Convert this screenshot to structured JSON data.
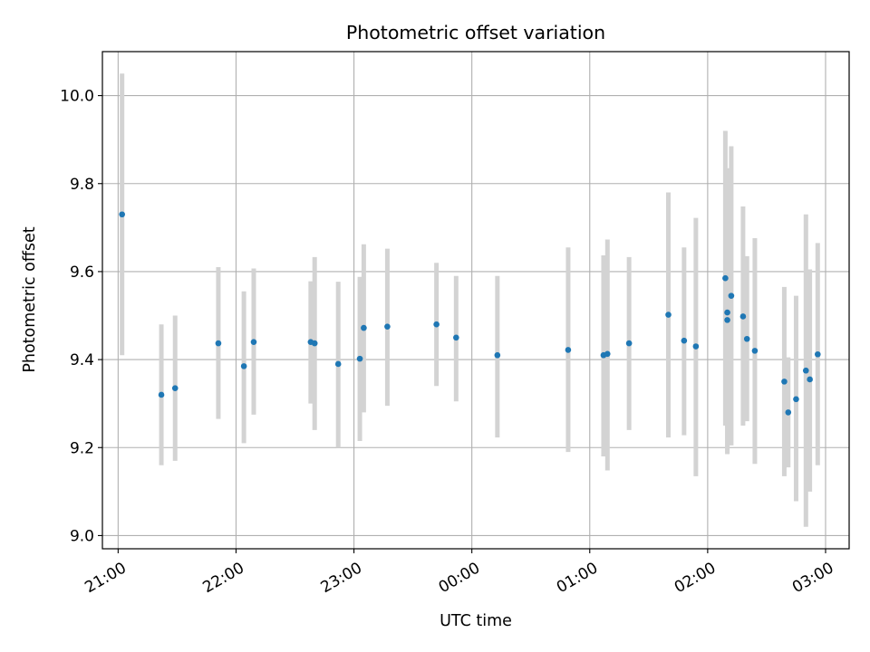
{
  "chart_data": {
    "type": "scatter",
    "title": "Photometric offset variation",
    "xlabel": "UTC time",
    "ylabel": "Photometric offset",
    "x_is_time": true,
    "xlim": [
      "20:52",
      "03:12"
    ],
    "ylim": [
      8.97,
      10.1
    ],
    "x_ticks": [
      "21:00",
      "22:00",
      "23:00",
      "00:00",
      "01:00",
      "02:00",
      "03:00"
    ],
    "y_ticks": [
      "9.0",
      "9.2",
      "9.4",
      "9.6",
      "9.8",
      "10.0"
    ],
    "grid": true,
    "marker_color": "#1f77b4",
    "errorbar_color": "#d3d3d3",
    "points": [
      {
        "time": "21:02",
        "y": 9.73,
        "ylow": 9.41,
        "yhigh": 10.05
      },
      {
        "time": "21:22",
        "y": 9.32,
        "ylow": 9.16,
        "yhigh": 9.48
      },
      {
        "time": "21:29",
        "y": 9.335,
        "ylow": 9.17,
        "yhigh": 9.5
      },
      {
        "time": "21:51",
        "y": 9.437,
        "ylow": 9.265,
        "yhigh": 9.61
      },
      {
        "time": "22:04",
        "y": 9.385,
        "ylow": 9.21,
        "yhigh": 9.555
      },
      {
        "time": "22:09",
        "y": 9.44,
        "ylow": 9.275,
        "yhigh": 9.607
      },
      {
        "time": "22:38",
        "y": 9.44,
        "ylow": 9.3,
        "yhigh": 9.578
      },
      {
        "time": "22:40",
        "y": 9.437,
        "ylow": 9.24,
        "yhigh": 9.633
      },
      {
        "time": "22:52",
        "y": 9.39,
        "ylow": 9.2,
        "yhigh": 9.577
      },
      {
        "time": "23:03",
        "y": 9.402,
        "ylow": 9.215,
        "yhigh": 9.588
      },
      {
        "time": "23:05",
        "y": 9.472,
        "ylow": 9.28,
        "yhigh": 9.662
      },
      {
        "time": "23:17",
        "y": 9.475,
        "ylow": 9.295,
        "yhigh": 9.652
      },
      {
        "time": "23:42",
        "y": 9.48,
        "ylow": 9.34,
        "yhigh": 9.62
      },
      {
        "time": "23:52",
        "y": 9.45,
        "ylow": 9.305,
        "yhigh": 9.59
      },
      {
        "time": "00:13",
        "y": 9.41,
        "ylow": 9.223,
        "yhigh": 9.59
      },
      {
        "time": "00:49",
        "y": 9.422,
        "ylow": 9.19,
        "yhigh": 9.655
      },
      {
        "time": "01:07",
        "y": 9.41,
        "ylow": 9.18,
        "yhigh": 9.637
      },
      {
        "time": "01:09",
        "y": 9.413,
        "ylow": 9.148,
        "yhigh": 9.673
      },
      {
        "time": "01:20",
        "y": 9.437,
        "ylow": 9.24,
        "yhigh": 9.633
      },
      {
        "time": "01:40",
        "y": 9.502,
        "ylow": 9.223,
        "yhigh": 9.78
      },
      {
        "time": "01:48",
        "y": 9.443,
        "ylow": 9.228,
        "yhigh": 9.655
      },
      {
        "time": "01:54",
        "y": 9.43,
        "ylow": 9.135,
        "yhigh": 9.722
      },
      {
        "time": "02:09",
        "y": 9.585,
        "ylow": 9.25,
        "yhigh": 9.92
      },
      {
        "time": "02:10",
        "y": 9.507,
        "ylow": 9.185,
        "yhigh": 9.835
      },
      {
        "time": "02:10",
        "y": 9.49,
        "ylow": 9.19,
        "yhigh": 9.8
      },
      {
        "time": "02:12",
        "y": 9.545,
        "ylow": 9.205,
        "yhigh": 9.885
      },
      {
        "time": "02:18",
        "y": 9.498,
        "ylow": 9.25,
        "yhigh": 9.748
      },
      {
        "time": "02:20",
        "y": 9.447,
        "ylow": 9.26,
        "yhigh": 9.635
      },
      {
        "time": "02:24",
        "y": 9.42,
        "ylow": 9.163,
        "yhigh": 9.676
      },
      {
        "time": "02:39",
        "y": 9.35,
        "ylow": 9.135,
        "yhigh": 9.565
      },
      {
        "time": "02:41",
        "y": 9.28,
        "ylow": 9.155,
        "yhigh": 9.405
      },
      {
        "time": "02:45",
        "y": 9.31,
        "ylow": 9.078,
        "yhigh": 9.545
      },
      {
        "time": "02:50",
        "y": 9.375,
        "ylow": 9.02,
        "yhigh": 9.73
      },
      {
        "time": "02:52",
        "y": 9.355,
        "ylow": 9.1,
        "yhigh": 9.605
      },
      {
        "time": "02:56",
        "y": 9.412,
        "ylow": 9.16,
        "yhigh": 9.665
      }
    ]
  }
}
